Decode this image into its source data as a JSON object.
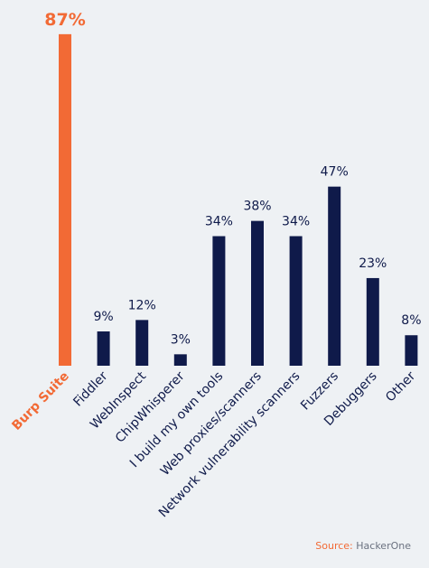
{
  "chart_data": {
    "type": "bar",
    "categories": [
      "Burp Suite",
      "Fiddler",
      "WebInspect",
      "ChipWhisperer",
      "I build my own tools",
      "Web proxies/scanners",
      "Network vulnerability scanners",
      "Fuzzers",
      "Debuggers",
      "Other"
    ],
    "values": [
      87,
      9,
      12,
      3,
      34,
      38,
      34,
      47,
      23,
      8
    ],
    "value_labels": [
      "87%",
      "9%",
      "12%",
      "3%",
      "34%",
      "38%",
      "34%",
      "47%",
      "23%",
      "8%"
    ],
    "colors": [
      "#f26a35",
      "#0f1a4a",
      "#0f1a4a",
      "#0f1a4a",
      "#0f1a4a",
      "#0f1a4a",
      "#0f1a4a",
      "#0f1a4a",
      "#0f1a4a",
      "#0f1a4a"
    ],
    "source_label": "Source:",
    "source": "HackerOne"
  }
}
